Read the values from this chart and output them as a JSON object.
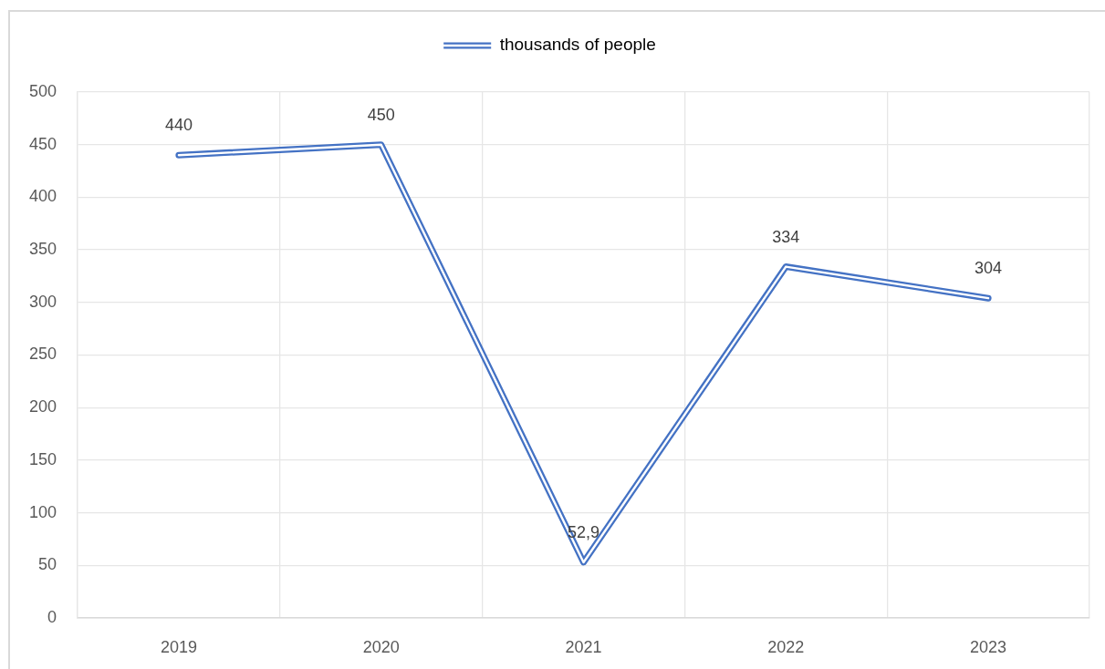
{
  "chart_data": {
    "type": "line",
    "categories": [
      "2019",
      "2020",
      "2021",
      "2022",
      "2023"
    ],
    "series": [
      {
        "name": "thousands of people",
        "color": "#4472c4",
        "values": [
          440,
          450,
          52.9,
          334,
          304
        ],
        "value_labels": [
          "440",
          "450",
          "52,9",
          "334",
          "304"
        ]
      }
    ],
    "ylim": [
      0,
      500
    ],
    "yticks": [
      0,
      50,
      100,
      150,
      200,
      250,
      300,
      350,
      400,
      450,
      500
    ],
    "grid": true,
    "legend": "top",
    "marker": "none"
  }
}
